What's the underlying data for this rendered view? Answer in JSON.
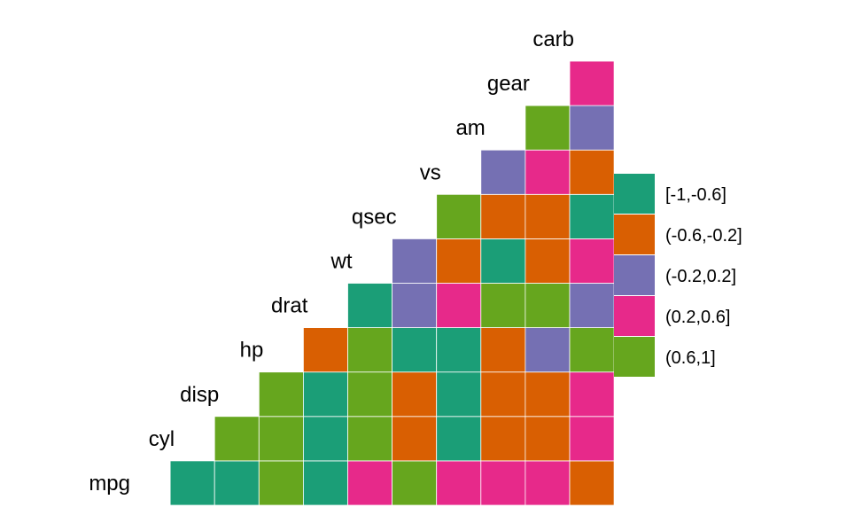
{
  "chart_data": {
    "type": "heatmap",
    "title": "",
    "xlabel": "",
    "ylabel": "",
    "variables": [
      "mpg",
      "cyl",
      "disp",
      "hp",
      "drat",
      "wt",
      "qsec",
      "vs",
      "am",
      "gear",
      "carb"
    ],
    "bins": [
      "[-1,-0.6]",
      "(-0.6,-0.2]",
      "(-0.2,0.2]",
      "(0.2,0.6]",
      "(0.6,1]"
    ],
    "bin_colors": [
      "#1B9E77",
      "#D95F02",
      "#7570B3",
      "#E7298A",
      "#66A61E"
    ],
    "legend_position": "right",
    "grid": false,
    "cells": [
      [
        "cyl",
        "mpg",
        "[-1,-0.6]"
      ],
      [
        "disp",
        "mpg",
        "[-1,-0.6]"
      ],
      [
        "disp",
        "cyl",
        "(0.6,1]"
      ],
      [
        "hp",
        "mpg",
        "(0.6,1]"
      ],
      [
        "hp",
        "cyl",
        "(0.6,1]"
      ],
      [
        "hp",
        "disp",
        "(0.6,1]"
      ],
      [
        "drat",
        "mpg",
        "[-1,-0.6]"
      ],
      [
        "drat",
        "cyl",
        "[-1,-0.6]"
      ],
      [
        "drat",
        "disp",
        "[-1,-0.6]"
      ],
      [
        "drat",
        "hp",
        "(-0.6,-0.2]"
      ],
      [
        "wt",
        "mpg",
        "(0.2,0.6]"
      ],
      [
        "wt",
        "cyl",
        "(0.6,1]"
      ],
      [
        "wt",
        "disp",
        "(0.6,1]"
      ],
      [
        "wt",
        "hp",
        "(0.6,1]"
      ],
      [
        "wt",
        "drat",
        "[-1,-0.6]"
      ],
      [
        "qsec",
        "mpg",
        "(0.6,1]"
      ],
      [
        "qsec",
        "cyl",
        "(-0.6,-0.2]"
      ],
      [
        "qsec",
        "disp",
        "(-0.6,-0.2]"
      ],
      [
        "qsec",
        "hp",
        "[-1,-0.6]"
      ],
      [
        "qsec",
        "drat",
        "(-0.2,0.2]"
      ],
      [
        "qsec",
        "wt",
        "(-0.2,0.2]"
      ],
      [
        "vs",
        "mpg",
        "(0.2,0.6]"
      ],
      [
        "vs",
        "cyl",
        "[-1,-0.6]"
      ],
      [
        "vs",
        "disp",
        "[-1,-0.6]"
      ],
      [
        "vs",
        "hp",
        "[-1,-0.6]"
      ],
      [
        "vs",
        "drat",
        "(0.2,0.6]"
      ],
      [
        "vs",
        "wt",
        "(-0.6,-0.2]"
      ],
      [
        "vs",
        "qsec",
        "(0.6,1]"
      ],
      [
        "am",
        "mpg",
        "(0.2,0.6]"
      ],
      [
        "am",
        "cyl",
        "(-0.6,-0.2]"
      ],
      [
        "am",
        "disp",
        "(-0.6,-0.2]"
      ],
      [
        "am",
        "hp",
        "(-0.6,-0.2]"
      ],
      [
        "am",
        "drat",
        "(0.6,1]"
      ],
      [
        "am",
        "wt",
        "[-1,-0.6]"
      ],
      [
        "am",
        "qsec",
        "(-0.6,-0.2]"
      ],
      [
        "am",
        "vs",
        "(-0.2,0.2]"
      ],
      [
        "gear",
        "mpg",
        "(0.2,0.6]"
      ],
      [
        "gear",
        "cyl",
        "(-0.6,-0.2]"
      ],
      [
        "gear",
        "disp",
        "(-0.6,-0.2]"
      ],
      [
        "gear",
        "hp",
        "(-0.2,0.2]"
      ],
      [
        "gear",
        "drat",
        "(0.6,1]"
      ],
      [
        "gear",
        "wt",
        "(-0.6,-0.2]"
      ],
      [
        "gear",
        "qsec",
        "(-0.6,-0.2]"
      ],
      [
        "gear",
        "vs",
        "(0.2,0.6]"
      ],
      [
        "gear",
        "am",
        "(0.6,1]"
      ],
      [
        "carb",
        "mpg",
        "(-0.6,-0.2]"
      ],
      [
        "carb",
        "cyl",
        "(0.2,0.6]"
      ],
      [
        "carb",
        "disp",
        "(0.2,0.6]"
      ],
      [
        "carb",
        "hp",
        "(0.6,1]"
      ],
      [
        "carb",
        "drat",
        "(-0.2,0.2]"
      ],
      [
        "carb",
        "wt",
        "(0.2,0.6]"
      ],
      [
        "carb",
        "qsec",
        "[-1,-0.6]"
      ],
      [
        "carb",
        "vs",
        "(-0.6,-0.2]"
      ],
      [
        "carb",
        "am",
        "(-0.2,0.2]"
      ],
      [
        "carb",
        "gear",
        "(0.2,0.6]"
      ]
    ]
  }
}
